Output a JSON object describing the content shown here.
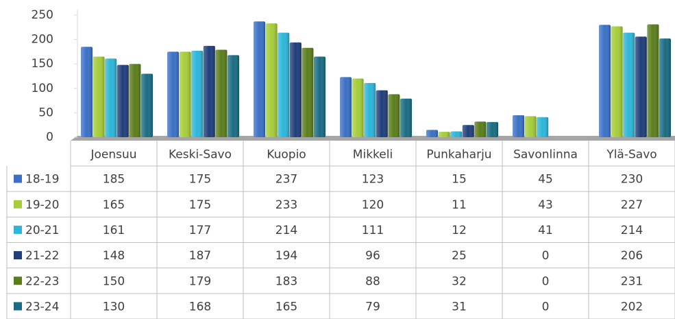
{
  "chart_data": {
    "type": "bar",
    "categories": [
      "Joensuu",
      "Keski-Savo",
      "Kuopio",
      "Mikkeli",
      "Punkaharju",
      "Savonlinna",
      "Ylä-Savo"
    ],
    "series": [
      {
        "name": "18-19",
        "color": "#3b70c6",
        "values": [
          185,
          175,
          237,
          123,
          15,
          45,
          230
        ]
      },
      {
        "name": "19-20",
        "color": "#a6cc3a",
        "values": [
          165,
          175,
          233,
          120,
          11,
          43,
          227
        ]
      },
      {
        "name": "20-21",
        "color": "#2db6da",
        "values": [
          161,
          177,
          214,
          111,
          12,
          41,
          214
        ]
      },
      {
        "name": "21-22",
        "color": "#1f3e7a",
        "values": [
          148,
          187,
          194,
          96,
          25,
          0,
          206
        ]
      },
      {
        "name": "22-23",
        "color": "#5b7d1c",
        "values": [
          150,
          179,
          183,
          88,
          32,
          0,
          231
        ]
      },
      {
        "name": "23-24",
        "color": "#1a6c82",
        "values": [
          130,
          168,
          165,
          79,
          31,
          0,
          202
        ]
      }
    ],
    "ylim": [
      0,
      250
    ],
    "yticks": [
      0,
      50,
      100,
      150,
      200,
      250
    ],
    "grid": false,
    "legend": "table"
  }
}
